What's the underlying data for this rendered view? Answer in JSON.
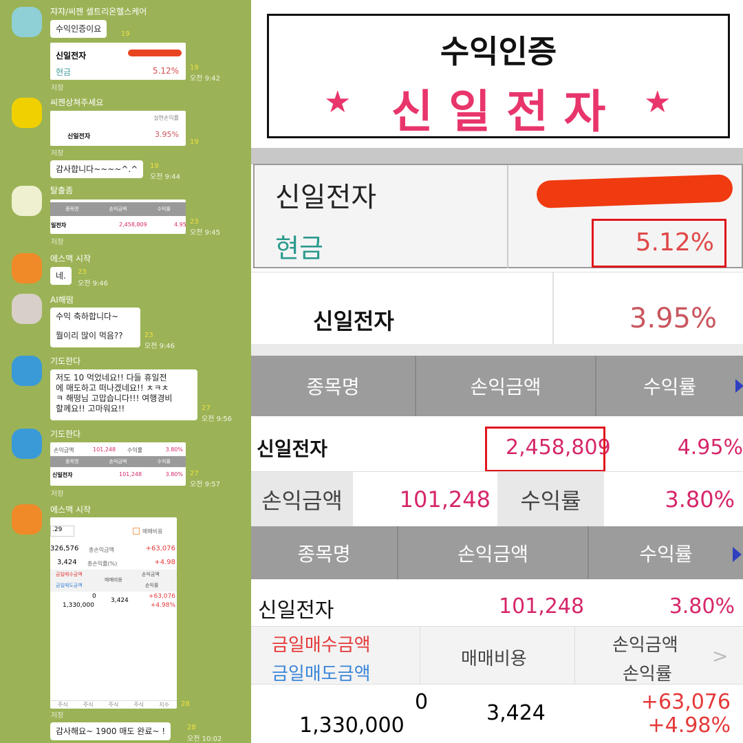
{
  "chat": {
    "messages": [
      {
        "sender": "쟈쟈/씨젠 셀트리온헬스케어",
        "text": "수익인증이요",
        "count": "19"
      },
      {
        "image": {
          "stock": "신일전자",
          "label": "현금",
          "rate": "5.12%"
        },
        "count": "19",
        "time": "오전 9:42",
        "save": "저장"
      },
      {
        "sender": "씨젠상쳐주세요",
        "image": {
          "header": "실현손익률",
          "stock": "신일전자",
          "rate": "3.95%"
        },
        "count": "19",
        "save": "저장"
      },
      {
        "text": "감사합니다~~~~^.^",
        "count": "19",
        "time": "오전 9:44"
      },
      {
        "sender": "탈출좀",
        "image": {
          "headers": [
            "종목명",
            "손익금액",
            "수익률"
          ],
          "stock": "일전자",
          "amount": "2,458,809",
          "rate": "4.95"
        },
        "count": "23",
        "time": "오전 9:45",
        "save": "저장"
      },
      {
        "sender": "에스맥 시작",
        "text": "네.",
        "count": "23",
        "time": "오전 9:46"
      },
      {
        "sender": "AI해떰",
        "text": "수익 축하합니다~",
        "text2": "뭘이리 많이 먹음??",
        "count": "23",
        "time": "오전 9:46"
      },
      {
        "sender": "기도한다",
        "lines": [
          "저도 10 먹었네요!! 다들 휴일전",
          "에 매도하고 떠나겠네요!! ㅊㅋㅊ",
          "ㅋ 해떵님 고맙습니다!!! 여행경비",
          "할께요!! 고마워요!!"
        ],
        "count": "27",
        "time": "오전 9:56"
      },
      {
        "sender": "기도한다",
        "image": {
          "l1": "손익금액",
          "v1": "101,248",
          "l2": "수익률",
          "v2": "3.80%",
          "headers": [
            "종목명",
            "손익금액",
            "수익률"
          ],
          "stock": "신일전자",
          "amount": "101,248",
          "rate": "3.80%"
        },
        "count": "27",
        "time": "오전 9:57",
        "save": "저장"
      },
      {
        "sender": "에스맥 시작",
        "image": {
          "date": ".29",
          "check": "매매비용",
          "r1a": "326,576",
          "r1b": "총손익금액",
          "r1c": "+63,076",
          "r2a": "3,424",
          "r2b": "총손익률(%)",
          "r2c": "+4.98",
          "h1": "금일매수금액",
          "h2": "금일매도금액",
          "h3": "매매비용",
          "h4": "손익금액",
          "h5": "손익률",
          "v1": "0",
          "v2": "1,330,000",
          "v3": "3,424",
          "v4": "+63,076",
          "v5": "+4.98%",
          "tabs": [
            "주식",
            "주식",
            "주식",
            "주식",
            "지수"
          ]
        },
        "count": "28",
        "save": "저장"
      },
      {
        "text": "감사해요~ 1900 매도 완료~ !",
        "count": "28",
        "time": "오전 10:02"
      }
    ]
  },
  "banner": {
    "title": "수익인증",
    "subtitle": "신 일 전 자",
    "star": "★"
  },
  "p1": {
    "stock": "신일전자",
    "label": "현금",
    "rate": "5.12%"
  },
  "p2": {
    "stock": "신일전자",
    "rate": "3.95%"
  },
  "p3": {
    "headers": [
      "종목명",
      "손익금액",
      "수익률"
    ],
    "stock": "신일전자",
    "amount": "2,458,809",
    "rate": "4.95%"
  },
  "p4": {
    "l1": "손익금액",
    "v1": "101,248",
    "l2": "수익률",
    "v2": "3.80%"
  },
  "p5": {
    "headers": [
      "종목명",
      "손익금액",
      "수익률"
    ],
    "stock": "신일전자",
    "amount": "101,248",
    "rate": "3.80%",
    "h1": "금일매수금액",
    "h2": "금일매도금액",
    "h3": "매매비용",
    "h4": "손익금액",
    "h5": "손익률",
    "v1": "0",
    "v2": "1,330,000",
    "v3": "3,424",
    "v4": "+63,076",
    "v5": "+4.98%"
  },
  "colors": {
    "chat_bg": "#9bb356",
    "accent_pink": "#e8356b",
    "profit_pink": "#d6266a",
    "highlight_red": "#e0161c"
  }
}
